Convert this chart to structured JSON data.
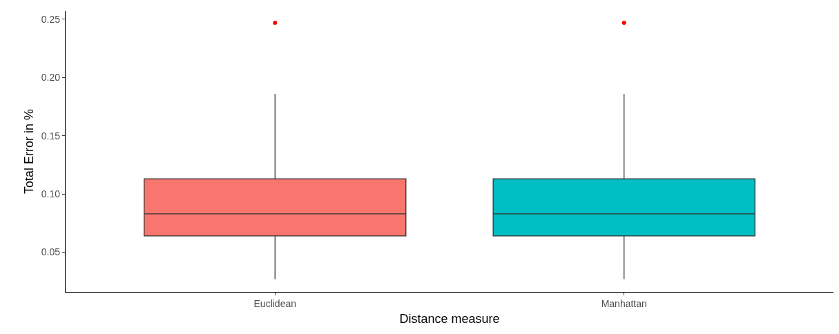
{
  "chart_data": {
    "type": "box",
    "xlabel": "Distance measure",
    "ylabel": "Total Error in %",
    "categories": [
      "Euclidean",
      "Manhattan"
    ],
    "boxes": [
      {
        "low": 0.027,
        "q1": 0.064,
        "median": 0.083,
        "q3": 0.113,
        "high": 0.186
      },
      {
        "low": 0.027,
        "q1": 0.064,
        "median": 0.083,
        "q3": 0.113,
        "high": 0.186
      }
    ],
    "colors": [
      "#f8766d",
      "#00bfc4"
    ],
    "series": [
      {
        "type": "scatter",
        "x": [
          "Euclidean",
          "Manhattan"
        ],
        "values": [
          0.247,
          0.247
        ],
        "color": "#ff0000"
      }
    ],
    "ylim": [
      0.016,
      0.257
    ],
    "yticks": [
      0.05,
      {
        "value": 0.1,
        "label": "0.10"
      },
      0.15,
      {
        "value": 0.2,
        "label": "0.20"
      },
      0.25
    ],
    "grid": false,
    "marker": "circle"
  }
}
